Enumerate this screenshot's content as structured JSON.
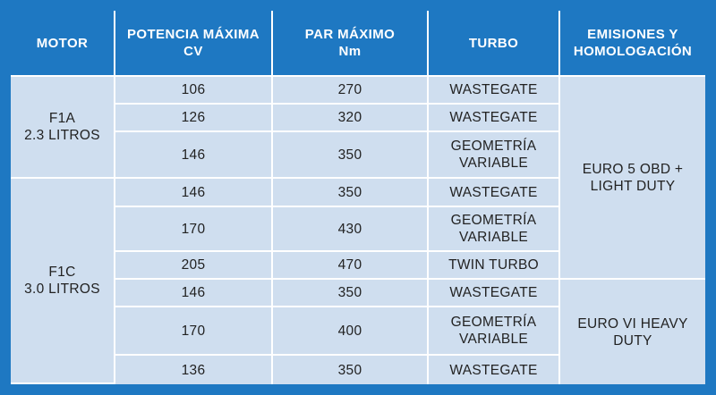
{
  "headers": {
    "motor": "MOTOR",
    "potencia_1": "POTENCIA MÁXIMA",
    "potencia_2": "CV",
    "par_1": "PAR MÁXIMO",
    "par_2": "Nm",
    "turbo": "TURBO",
    "emisiones_1": "EMISIONES Y",
    "emisiones_2": "HOMOLOGACIÓN"
  },
  "engines": [
    {
      "name": "F1A",
      "displacement": "2.3 LITROS"
    },
    {
      "name": "F1C",
      "displacement": "3.0 LITROS"
    }
  ],
  "emissions": [
    {
      "line1": "EURO 5 OBD +",
      "line2": "LIGHT DUTY"
    },
    {
      "line1": "EURO VI HEAVY",
      "line2": "DUTY"
    }
  ],
  "rows": [
    {
      "potencia": "106",
      "par": "270",
      "turbo_1": "WASTEGATE",
      "turbo_2": ""
    },
    {
      "potencia": "126",
      "par": "320",
      "turbo_1": "WASTEGATE",
      "turbo_2": ""
    },
    {
      "potencia": "146",
      "par": "350",
      "turbo_1": "GEOMETRÍA",
      "turbo_2": "VARIABLE"
    },
    {
      "potencia": "146",
      "par": "350",
      "turbo_1": "WASTEGATE",
      "turbo_2": ""
    },
    {
      "potencia": "170",
      "par": "430",
      "turbo_1": "GEOMETRÍA",
      "turbo_2": "VARIABLE"
    },
    {
      "potencia": "205",
      "par": "470",
      "turbo_1": "TWIN TURBO",
      "turbo_2": ""
    },
    {
      "potencia": "146",
      "par": "350",
      "turbo_1": "WASTEGATE",
      "turbo_2": ""
    },
    {
      "potencia": "170",
      "par": "400",
      "turbo_1": "GEOMETRÍA",
      "turbo_2": "VARIABLE"
    },
    {
      "potencia": "136",
      "par": "350",
      "turbo_1": "WASTEGATE",
      "turbo_2": ""
    }
  ]
}
